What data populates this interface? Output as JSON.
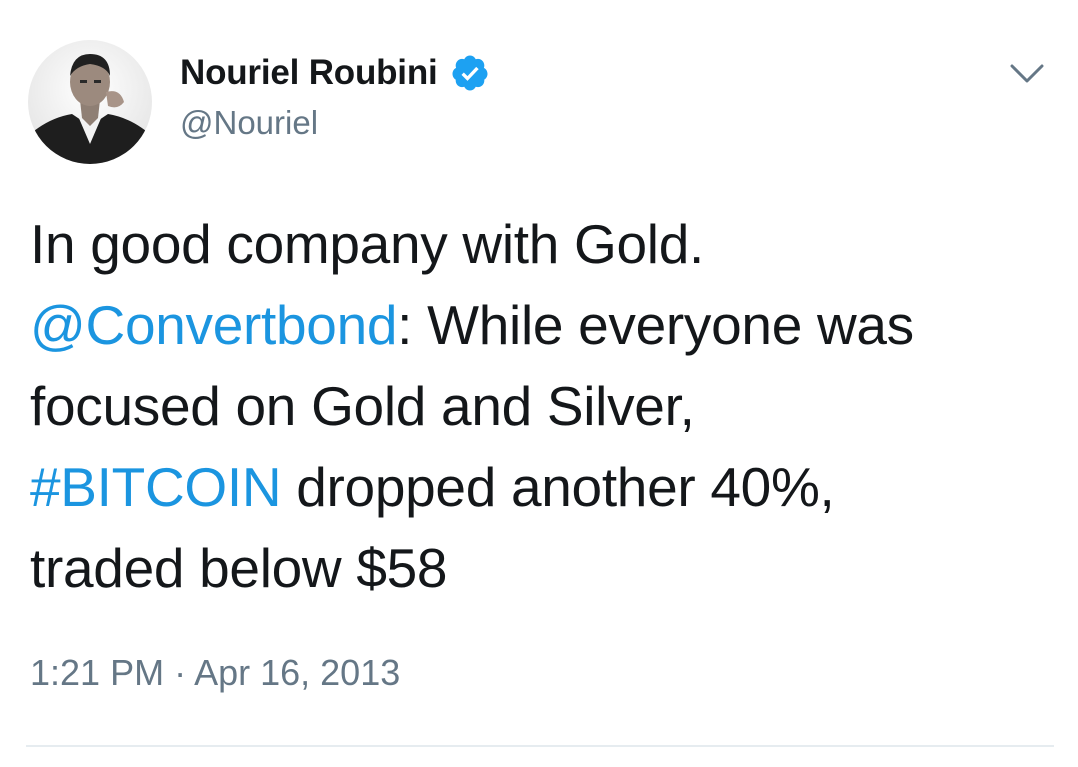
{
  "author": {
    "display_name": "Nouriel Roubini",
    "handle": "@Nouriel",
    "verified": true,
    "avatar_icon": "profile-photo"
  },
  "tweet": {
    "line1": "In good company with Gold.",
    "mention": "@Convertbond",
    "line2_rest": ": While everyone was",
    "line3": "focused on Gold and Silver,",
    "hashtag": "#BITCOIN",
    "line4_rest": " dropped another 40%,",
    "line5": "traded below $58"
  },
  "meta": {
    "timestamp": "1:21 PM · Apr 16, 2013"
  },
  "icons": {
    "verified": "verified-badge-icon",
    "menu": "chevron-down-icon"
  },
  "colors": {
    "text": "#14171a",
    "secondary": "#657786",
    "link": "#1b95e0",
    "verified": "#1da1f2"
  }
}
